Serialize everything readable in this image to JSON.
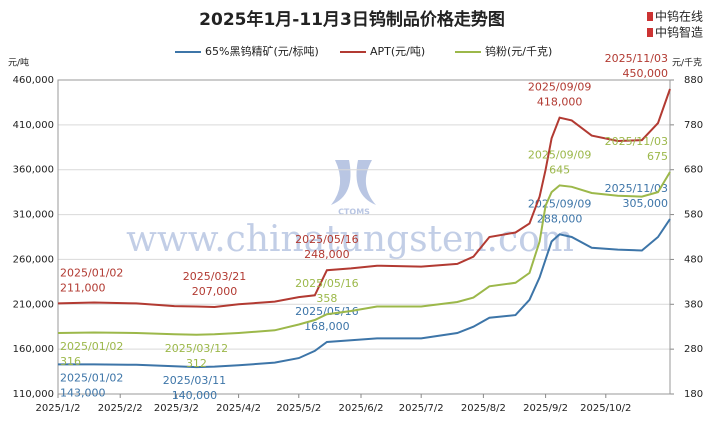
{
  "chart_data": {
    "type": "line",
    "title": "2025年1月-11月3日钨制品价格走势图",
    "brands": [
      "中钨在线",
      "中钨智造"
    ],
    "watermark": "www.chinatungsten.com",
    "logo_text": "CTOMS",
    "y_label": "元/吨",
    "y2_label": "元/千克",
    "x": [
      "2025-01-02",
      "2025-01-20",
      "2025-02-10",
      "2025-03-01",
      "2025-03-12",
      "2025-03-21",
      "2025-04-02",
      "2025-04-20",
      "2025-05-02",
      "2025-05-10",
      "2025-05-16",
      "2025-05-28",
      "2025-06-10",
      "2025-07-02",
      "2025-07-20",
      "2025-07-28",
      "2025-08-05",
      "2025-08-18",
      "2025-08-25",
      "2025-08-30",
      "2025-09-02",
      "2025-09-05",
      "2025-09-09",
      "2025-09-15",
      "2025-09-25",
      "2025-10-08",
      "2025-10-20",
      "2025-10-28",
      "2025-11-03"
    ],
    "xlim": [
      "2025-01-02",
      "2025-11-03"
    ],
    "xticks": [
      {
        "value": "2025-01-02",
        "label": "2025/1/2"
      },
      {
        "value": "2025-02-02",
        "label": "2025/2/2"
      },
      {
        "value": "2025-03-02",
        "label": "2025/3/2"
      },
      {
        "value": "2025-04-02",
        "label": "2025/4/2"
      },
      {
        "value": "2025-05-02",
        "label": "2025/5/2"
      },
      {
        "value": "2025-06-02",
        "label": "2025/6/2"
      },
      {
        "value": "2025-07-02",
        "label": "2025/7/2"
      },
      {
        "value": "2025-08-02",
        "label": "2025/8/2"
      },
      {
        "value": "2025-09-02",
        "label": "2025/9/2"
      },
      {
        "value": "2025-10-02",
        "label": "2025/10/2"
      }
    ],
    "ylim": [
      110000,
      460000
    ],
    "yticks": [
      {
        "value": 110000,
        "label": "110,000"
      },
      {
        "value": 160000,
        "label": "160,000"
      },
      {
        "value": 210000,
        "label": "210,000"
      },
      {
        "value": 260000,
        "label": "260,000"
      },
      {
        "value": 310000,
        "label": "310,000"
      },
      {
        "value": 360000,
        "label": "360,000"
      },
      {
        "value": 410000,
        "label": "410,000"
      },
      {
        "value": 460000,
        "label": "460,000"
      }
    ],
    "y2lim": [
      180,
      880
    ],
    "y2ticks": [
      180,
      280,
      380,
      480,
      580,
      680,
      780,
      880
    ],
    "grid": true,
    "series": [
      {
        "name": "65%黑钨精矿(元/标吨)",
        "color": "#3d75a8",
        "values": [
          143000,
          143000,
          142500,
          141000,
          140000,
          140500,
          142000,
          145000,
          150000,
          158000,
          168000,
          170000,
          172000,
          172000,
          178000,
          185000,
          195000,
          198000,
          215000,
          240000,
          260000,
          280000,
          288000,
          285000,
          273000,
          271000,
          270000,
          285000,
          305000
        ],
        "annotations": [
          {
            "date": "2025/01/02",
            "value": 143000,
            "value_label": "143,000"
          },
          {
            "date": "2025/03/11",
            "value": 140000,
            "value_label": "140,000"
          },
          {
            "date": "2025/05/16",
            "value": 168000,
            "value_label": "168,000"
          },
          {
            "date": "2025/09/09",
            "value": 288000,
            "value_label": "288,000"
          },
          {
            "date": "2025/11/03",
            "value": 305000,
            "value_label": "305,000"
          }
        ]
      },
      {
        "name": "APT(元/吨)",
        "color": "#b23a32",
        "values": [
          211000,
          212000,
          211000,
          208000,
          207500,
          207000,
          210000,
          213000,
          218000,
          220000,
          248000,
          250000,
          253000,
          252000,
          255000,
          263000,
          285000,
          290000,
          300000,
          330000,
          360000,
          395000,
          418000,
          415000,
          398000,
          392000,
          393000,
          412000,
          450000
        ],
        "annotations": [
          {
            "date": "2025/01/02",
            "value": 211000,
            "value_label": "211,000"
          },
          {
            "date": "2025/03/21",
            "value": 207000,
            "value_label": "207,000"
          },
          {
            "date": "2025/05/16",
            "value": 248000,
            "value_label": "248,000"
          },
          {
            "date": "2025/09/09",
            "value": 418000,
            "value_label": "418,000"
          },
          {
            "date": "2025/11/03",
            "value": 450000,
            "value_label": "450,000"
          }
        ]
      },
      {
        "name": "钨粉(元/千克)",
        "color": "#9cb84a",
        "axis": "y2",
        "values": [
          316,
          317,
          316,
          313,
          312,
          313,
          316,
          322,
          335,
          345,
          358,
          365,
          375,
          375,
          385,
          395,
          420,
          428,
          450,
          520,
          600,
          630,
          645,
          642,
          628,
          622,
          620,
          630,
          675
        ],
        "annotations": [
          {
            "date": "2025/01/02",
            "value": 316
          },
          {
            "date": "2025/03/12",
            "value": 312
          },
          {
            "date": "2025/05/16",
            "value": 358
          },
          {
            "date": "2025/09/09",
            "value": 645
          },
          {
            "date": "2025/11/03",
            "value": 675
          }
        ]
      }
    ]
  }
}
